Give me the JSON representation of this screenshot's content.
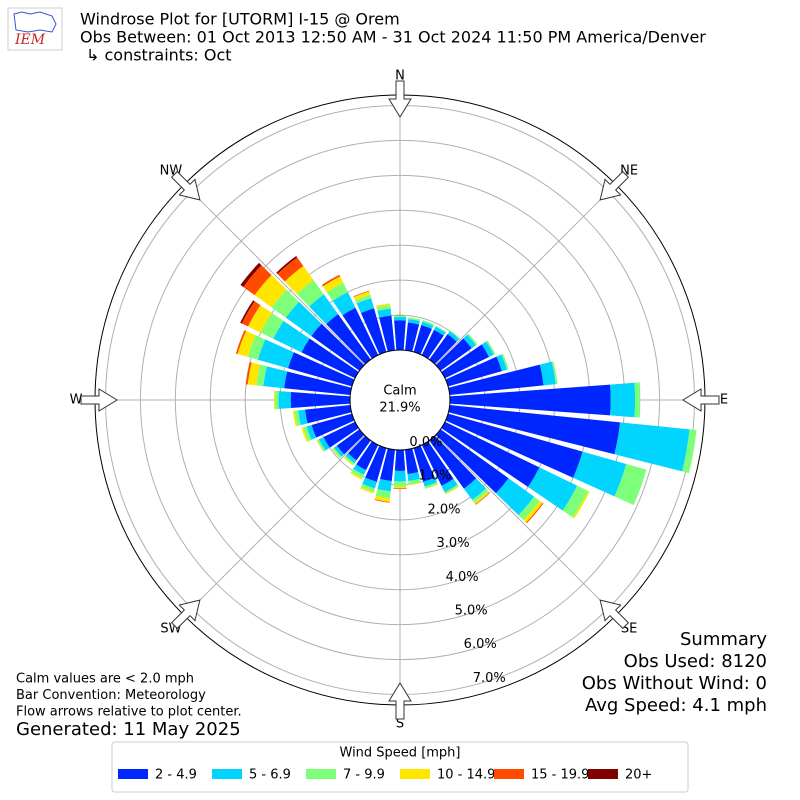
{
  "chart_data": {
    "type": "windrose",
    "logo": "IEM",
    "title": "Windrose Plot for [UTORM] I-15 @ Orem",
    "subtitle": "Obs Between: 01 Oct 2013 12:50 AM - 31 Oct 2024 11:50 PM America/Denver",
    "constraints": "↳ constraints: Oct",
    "x": [
      0,
      10,
      20,
      30,
      40,
      50,
      60,
      70,
      80,
      90,
      100,
      110,
      120,
      130,
      140,
      150,
      160,
      170,
      180,
      190,
      200,
      210,
      220,
      230,
      240,
      250,
      260,
      270,
      280,
      290,
      300,
      310,
      320,
      330,
      340,
      350
    ],
    "xticks": [
      {
        "value": 0,
        "label": "N"
      },
      {
        "value": 45,
        "label": "NE"
      },
      {
        "value": 90,
        "label": "E"
      },
      {
        "value": 135,
        "label": "SE"
      },
      {
        "value": 180,
        "label": "S"
      },
      {
        "value": 225,
        "label": "SW"
      },
      {
        "value": 270,
        "label": "W"
      },
      {
        "value": 315,
        "label": "NW"
      }
    ],
    "ylim": [
      0,
      7.3
    ],
    "yticks": [
      {
        "value": 0,
        "label": "0.0%"
      },
      {
        "value": 1,
        "label": "1.0%"
      },
      {
        "value": 2,
        "label": "2.0%"
      },
      {
        "value": 3,
        "label": "3.0%"
      },
      {
        "value": 4,
        "label": "4.0%"
      },
      {
        "value": 5,
        "label": "5.0%"
      },
      {
        "value": 6,
        "label": "6.0%"
      },
      {
        "value": 7,
        "label": "7.0%"
      }
    ],
    "grid": true,
    "calm_title": "Calm",
    "calm_value": "21.9%",
    "legend_title": "Wind Speed [mph]",
    "series": [
      {
        "name": "2 - 4.9",
        "color": "#0026ff",
        "values": [
          0.85,
          0.8,
          0.8,
          0.8,
          0.9,
          1.1,
          1.4,
          1.6,
          2.7,
          4.6,
          4.9,
          4.0,
          3.0,
          2.4,
          1.7,
          1.3,
          1.0,
          0.7,
          0.6,
          0.9,
          1.0,
          0.8,
          0.7,
          0.8,
          1.0,
          1.2,
          1.3,
          1.7,
          1.9,
          1.9,
          1.7,
          1.7,
          1.6,
          1.5,
          1.3,
          1.0
        ]
      },
      {
        "name": "5 - 6.9",
        "color": "#00d4ff",
        "values": [
          0.1,
          0.1,
          0.1,
          0.1,
          0.1,
          0.15,
          0.15,
          0.15,
          0.35,
          0.7,
          2.0,
          1.3,
          1.2,
          0.9,
          0.4,
          0.2,
          0.15,
          0.2,
          0.3,
          0.3,
          0.2,
          0.15,
          0.1,
          0.1,
          0.15,
          0.15,
          0.2,
          0.35,
          0.6,
          0.9,
          0.9,
          0.9,
          0.7,
          0.5,
          0.3,
          0.2
        ]
      },
      {
        "name": "7 - 9.9",
        "color": "#7dff7a",
        "values": [
          0.05,
          0.05,
          0.05,
          0.03,
          0.03,
          0.05,
          0.05,
          0.05,
          0.05,
          0.15,
          0.2,
          0.6,
          0.35,
          0.2,
          0.1,
          0.05,
          0.05,
          0.1,
          0.15,
          0.2,
          0.1,
          0.1,
          0.05,
          0.05,
          0.05,
          0.1,
          0.1,
          0.1,
          0.2,
          0.3,
          0.4,
          0.5,
          0.5,
          0.3,
          0.1,
          0.1
        ]
      },
      {
        "name": "10 - 14.9",
        "color": "#ffe600",
        "values": [
          0,
          0,
          0,
          0,
          0,
          0,
          0,
          0,
          0,
          0,
          0,
          0,
          0.05,
          0.1,
          0.05,
          0.02,
          0.02,
          0.02,
          0.05,
          0.1,
          0.05,
          0.05,
          0.03,
          0.02,
          0.02,
          0.05,
          0.05,
          0.03,
          0.25,
          0.3,
          0.4,
          0.6,
          0.5,
          0.2,
          0.1,
          0.05
        ]
      },
      {
        "name": "15 - 19.9",
        "color": "#ff4a00",
        "values": [
          0,
          0,
          0,
          0,
          0,
          0,
          0,
          0,
          0,
          0,
          0,
          0,
          0,
          0.03,
          0.02,
          0,
          0,
          0,
          0.02,
          0.02,
          0,
          0,
          0,
          0,
          0,
          0,
          0,
          0,
          0.05,
          0.05,
          0.2,
          0.4,
          0.3,
          0.05,
          0.02,
          0
        ]
      },
      {
        "name": "20+",
        "color": "#800000",
        "values": [
          0,
          0,
          0,
          0,
          0,
          0,
          0,
          0,
          0,
          0,
          0,
          0,
          0,
          0,
          0,
          0,
          0,
          0,
          0,
          0,
          0,
          0,
          0,
          0,
          0,
          0,
          0,
          0,
          0,
          0,
          0.05,
          0.1,
          0.05,
          0,
          0,
          0
        ]
      }
    ],
    "summary": [
      "Summary",
      "Obs Used: 8120",
      "Obs Without Wind: 0",
      "Avg Speed: 4.1 mph"
    ],
    "notes": [
      "Calm values are < 2.0 mph",
      "Bar Convention: Meteorology",
      "Flow arrows relative to plot center."
    ],
    "generated": "Generated: 11 May 2025"
  }
}
